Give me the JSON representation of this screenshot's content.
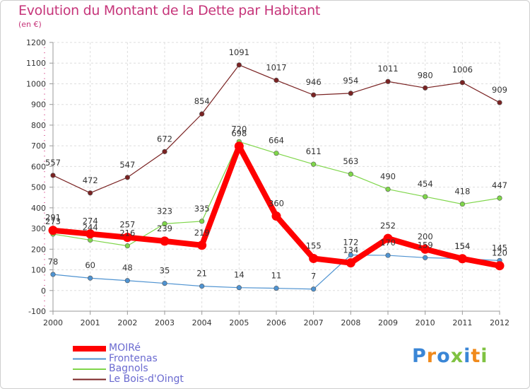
{
  "title": "Evolution du Montant de la Dette par Habitant",
  "unit": "(en €)",
  "logo": {
    "text": "Proxiti"
  },
  "chart_data": {
    "type": "line",
    "x": [
      "2000",
      "2001",
      "2002",
      "2003",
      "2004",
      "2005",
      "2006",
      "2007",
      "2008",
      "2009",
      "2010",
      "2011",
      "2012"
    ],
    "ylim": [
      -100,
      1200
    ],
    "yticks": [
      -100,
      0,
      100,
      200,
      300,
      400,
      500,
      600,
      700,
      800,
      900,
      1000,
      1100,
      1200
    ],
    "grid": true,
    "legend": "bottom-left",
    "series": [
      {
        "name": "MOIRé",
        "color": "#ff0000",
        "values": [
          291,
          274,
          257,
          239,
          219,
          698,
          360,
          155,
          134,
          252,
          200,
          154,
          120
        ]
      },
      {
        "name": "Frontenas",
        "color": "#4f93d1",
        "values": [
          78,
          60,
          48,
          35,
          21,
          14,
          11,
          7,
          172,
          170,
          159,
          154,
          145
        ]
      },
      {
        "name": "Bagnols",
        "color": "#7fd64a",
        "values": [
          273,
          244,
          216,
          323,
          335,
          720,
          664,
          611,
          563,
          490,
          454,
          418,
          447
        ]
      },
      {
        "name": "Le Bois-d'Oingt",
        "color": "#7a2323",
        "values": [
          557,
          472,
          547,
          672,
          854,
          1091,
          1017,
          946,
          954,
          1011,
          980,
          1006,
          909
        ]
      }
    ]
  }
}
